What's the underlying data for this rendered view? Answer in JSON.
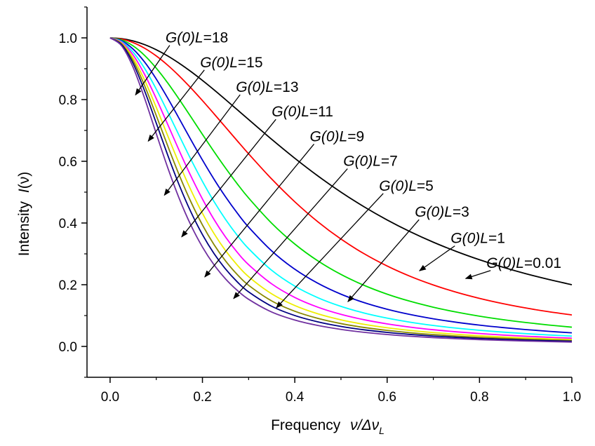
{
  "chart_data": {
    "type": "line",
    "title": "",
    "xlabel": "Frequency ν/Δν_L",
    "xlabel_text": "Frequency",
    "xlabel_math": "ν/Δν",
    "xlabel_sub": "L",
    "ylabel": "Intensity I(ν)",
    "ylabel_text": "Intensity",
    "ylabel_math": "I",
    "ylabel_arg": "(ν)",
    "xlim": [
      -0.05,
      1.0
    ],
    "ylim": [
      -0.1,
      1.1
    ],
    "xticks": [
      "0.0",
      "0.2",
      "0.4",
      "0.6",
      "0.8",
      "1.0"
    ],
    "xtick_values": [
      0.0,
      0.2,
      0.4,
      0.6,
      0.8,
      1.0
    ],
    "yticks": [
      "0.0",
      "0.2",
      "0.4",
      "0.6",
      "0.8",
      "1.0"
    ],
    "ytick_values": [
      0.0,
      0.2,
      0.4,
      0.6,
      0.8,
      1.0
    ],
    "grid": false,
    "x": [
      0.0,
      0.025,
      0.05,
      0.075,
      0.1,
      0.125,
      0.15,
      0.175,
      0.2,
      0.225,
      0.25,
      0.275,
      0.3,
      0.35,
      0.4,
      0.45,
      0.5,
      0.55,
      0.6,
      0.65,
      0.7,
      0.75,
      0.8,
      0.85,
      0.9,
      0.95,
      1.0
    ],
    "series": [
      {
        "label": "G(0)L=0.01",
        "color": "#000000",
        "values": [
          1.0,
          0.9975,
          0.9901,
          0.978,
          0.9615,
          0.9412,
          0.9174,
          0.8909,
          0.8621,
          0.8317,
          0.8,
          0.7677,
          0.7353,
          0.6711,
          0.6098,
          0.5525,
          0.5,
          0.4525,
          0.4098,
          0.3717,
          0.3378,
          0.3077,
          0.2809,
          0.257,
          0.2358,
          0.217,
          0.2
        ]
      },
      {
        "label": "G(0)L=1",
        "color": "#ff0000",
        "values": [
          1.0,
          0.9961,
          0.9847,
          0.9662,
          0.9414,
          0.9111,
          0.8762,
          0.8377,
          0.7967,
          0.754,
          0.7106,
          0.667,
          0.6242,
          0.5425,
          0.4688,
          0.4039,
          0.3479,
          0.3005,
          0.2606,
          0.2271,
          0.1991,
          0.1755,
          0.1557,
          0.1389,
          0.1246,
          0.1124,
          0.1019
        ]
      },
      {
        "label": "G(0)L=3",
        "color": "#00dd00",
        "values": [
          1.0,
          0.9933,
          0.9738,
          0.9427,
          0.9018,
          0.8535,
          0.8001,
          0.744,
          0.6873,
          0.6316,
          0.5782,
          0.5278,
          0.4811,
          0.3992,
          0.3318,
          0.2772,
          0.2333,
          0.198,
          0.1694,
          0.1462,
          0.1271,
          0.1113,
          0.098,
          0.0869,
          0.0775,
          0.0694,
          0.0624
        ]
      },
      {
        "label": "G(0)L=5",
        "color": "#0000cc",
        "values": [
          1.0,
          0.9906,
          0.9635,
          0.9211,
          0.8666,
          0.8041,
          0.7373,
          0.6698,
          0.6041,
          0.5421,
          0.4849,
          0.433,
          0.3866,
          0.3096,
          0.2502,
          0.2046,
          0.1693,
          0.142,
          0.1205,
          0.1034,
          0.0896,
          0.0783,
          0.069,
          0.0612,
          0.0546,
          0.0489,
          0.044
        ]
      },
      {
        "label": "G(0)L=7",
        "color": "#00ffff",
        "values": [
          1.0,
          0.988,
          0.9536,
          0.9005,
          0.8338,
          0.7593,
          0.6821,
          0.6063,
          0.5349,
          0.4697,
          0.4117,
          0.3608,
          0.3169,
          0.2467,
          0.1955,
          0.1579,
          0.1298,
          0.1083,
          0.0917,
          0.0785,
          0.0679,
          0.0593,
          0.0523,
          0.0464,
          0.0414,
          0.0372,
          0.0335
        ]
      },
      {
        "label": "G(0)L=9",
        "color": "#ff00ff",
        "values": [
          1.0,
          0.9855,
          0.944,
          0.8808,
          0.8032,
          0.7188,
          0.6336,
          0.5522,
          0.4778,
          0.4117,
          0.3545,
          0.3059,
          0.2649,
          0.2027,
          0.1587,
          0.1271,
          0.1039,
          0.0865,
          0.0731,
          0.0626,
          0.0541,
          0.0473,
          0.0417,
          0.037,
          0.033,
          0.0296,
          0.0267
        ]
      },
      {
        "label": "G(0)L=11",
        "color": "#eeee00",
        "values": [
          1.0,
          0.9829,
          0.9347,
          0.8621,
          0.7747,
          0.6822,
          0.5913,
          0.5069,
          0.4315,
          0.3661,
          0.3107,
          0.2644,
          0.2261,
          0.1704,
          0.1325,
          0.1057,
          0.0862,
          0.0717,
          0.0606,
          0.0518,
          0.0448,
          0.0392,
          0.0345,
          0.0306,
          0.0274,
          0.0246,
          0.0222
        ]
      },
      {
        "label": "G(0)L=13",
        "color": "#888800",
        "values": [
          1.0,
          0.9804,
          0.9256,
          0.8442,
          0.7482,
          0.6492,
          0.5543,
          0.4686,
          0.3937,
          0.3301,
          0.2771,
          0.2336,
          0.1982,
          0.1474,
          0.114,
          0.0908,
          0.074,
          0.0615,
          0.0519,
          0.0444,
          0.0384,
          0.0336,
          0.0296,
          0.0263,
          0.0235,
          0.0211,
          0.019
        ]
      },
      {
        "label": "G(0)L=15",
        "color": "#000080",
        "values": [
          1.0,
          0.978,
          0.9168,
          0.8272,
          0.7236,
          0.6193,
          0.5218,
          0.4357,
          0.3623,
          0.301,
          0.2509,
          0.2098,
          0.1766,
          0.1301,
          0.1001,
          0.0796,
          0.0648,
          0.0538,
          0.0454,
          0.0388,
          0.0336,
          0.0294,
          0.0259,
          0.023,
          0.0205,
          0.0184,
          0.0166
        ]
      },
      {
        "label": "G(0)L=18",
        "color": "#7030a0",
        "values": [
          1.0,
          0.9742,
          0.904,
          0.803,
          0.6896,
          0.5786,
          0.4784,
          0.3928,
          0.3221,
          0.2648,
          0.2188,
          0.1822,
          0.1527,
          0.1114,
          0.0854,
          0.0678,
          0.0552,
          0.0458,
          0.0386,
          0.033,
          0.0286,
          0.025,
          0.022,
          0.0196,
          0.0175,
          0.0157,
          0.0141
        ]
      }
    ],
    "annotations": [
      {
        "prefix": "G(0)L",
        "value": "=18",
        "x": 0.24,
        "y": 0.985,
        "arrow_to": [
          0.11,
          0.815
        ]
      },
      {
        "prefix": "G(0)L",
        "value": "=15",
        "x": 0.39,
        "y": 0.905,
        "arrow_to": [
          0.165,
          0.665
        ]
      },
      {
        "prefix": "G(0)L",
        "value": "=13",
        "x": 0.545,
        "y": 0.825,
        "arrow_to": [
          0.235,
          0.49
        ]
      },
      {
        "prefix": "G(0)L",
        "value": "=11",
        "x": 0.7,
        "y": 0.745,
        "arrow_to": [
          0.31,
          0.355
        ]
      },
      {
        "prefix": "G(0)L",
        "value": "=9",
        "x": 0.865,
        "y": 0.665,
        "arrow_to": [
          0.41,
          0.225
        ]
      },
      {
        "prefix": "G(0)L",
        "value": "=7",
        "x": 1.01,
        "y": 0.585,
        "arrow_to": [
          0.535,
          0.155
        ]
      },
      {
        "prefix": "G(0)L",
        "value": "=5",
        "x": 1.165,
        "y": 0.505,
        "arrow_to": [
          0.72,
          0.125
        ]
      },
      {
        "prefix": "G(0)L",
        "value": "=3",
        "x": 1.32,
        "y": 0.42,
        "arrow_to": [
          1.03,
          0.145
        ]
      },
      {
        "prefix": "G(0)L",
        "value": "=1",
        "x": 1.475,
        "y": 0.335,
        "arrow_to": [
          1.34,
          0.245
        ]
      },
      {
        "prefix": "G(0)L",
        "value": "=0.01",
        "x": 1.63,
        "y": 0.255,
        "arrow_to": [
          1.54,
          0.22
        ]
      }
    ]
  }
}
